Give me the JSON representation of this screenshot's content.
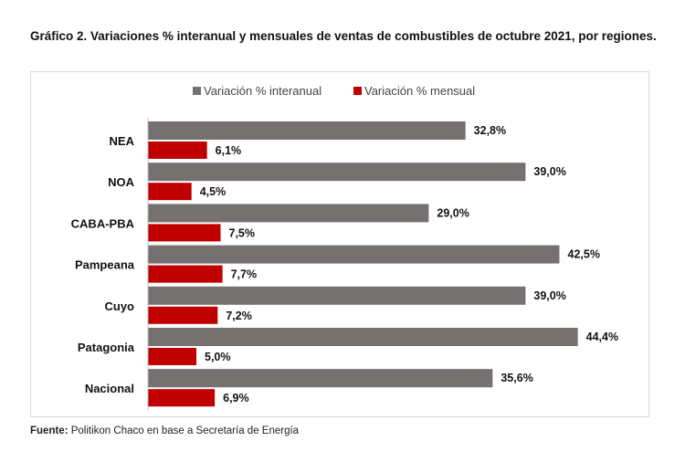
{
  "title": "Gráfico 2. Variaciones % interanual y mensuales de ventas de combustibles de octubre 2021, por regiones.",
  "source_label": "Fuente:",
  "source_text": "Politikon Chaco en base a Secretaría de Energía",
  "chart_data": {
    "type": "bar",
    "orientation": "horizontal",
    "categories": [
      "NEA",
      "NOA",
      "CABA-PBA",
      "Pampeana",
      "Cuyo",
      "Patagonia",
      "Nacional"
    ],
    "series": [
      {
        "name": "Variación % interanual",
        "color": "#767171",
        "values": [
          32.8,
          39.0,
          29.0,
          42.5,
          39.0,
          44.4,
          35.6
        ],
        "labels": [
          "32,8%",
          "39,0%",
          "29,0%",
          "42,5%",
          "39,0%",
          "44,4%",
          "35,6%"
        ]
      },
      {
        "name": "Variación % mensual",
        "color": "#c00000",
        "values": [
          6.1,
          4.5,
          7.5,
          7.7,
          7.2,
          5.0,
          6.9
        ],
        "labels": [
          "6,1%",
          "4,5%",
          "7,5%",
          "7,7%",
          "7,2%",
          "5,0%",
          "6,9%"
        ]
      }
    ],
    "legend": "top",
    "grid": false
  }
}
